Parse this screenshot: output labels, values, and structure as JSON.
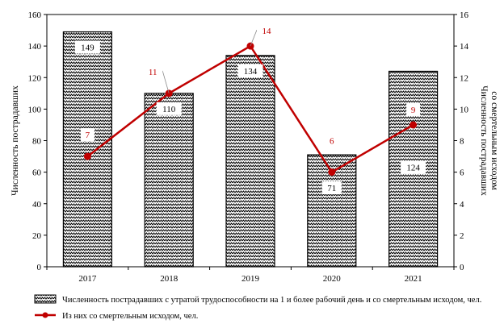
{
  "chart_data": {
    "type": "bar",
    "categories": [
      "2017",
      "2018",
      "2019",
      "2020",
      "2021"
    ],
    "series": [
      {
        "name": "Численность пострадавших с утратой трудоспособности на 1 и более рабочий день и со смертельным исходом, чел.",
        "type": "bar",
        "axis": "left",
        "values": [
          149,
          110,
          134,
          71,
          124
        ],
        "data_labels": [
          "149",
          "110",
          "134",
          "71",
          "124"
        ]
      },
      {
        "name": "Из них со смертельным исходом, чел.",
        "type": "line",
        "axis": "right",
        "values": [
          7,
          11,
          14,
          6,
          9
        ],
        "data_labels": [
          "7",
          "11",
          "14",
          "6",
          "9"
        ],
        "color": "#c00000"
      }
    ],
    "ylabel": "Численность пострадавших",
    "y2label": [
      "Численность пострадавших",
      "со смертельным исходом"
    ],
    "ylim": [
      0,
      160
    ],
    "y2lim": [
      0,
      16
    ],
    "yticks": [
      "0",
      "20",
      "40",
      "60",
      "80",
      "100",
      "120",
      "140",
      "160"
    ],
    "y2ticks": [
      "0",
      "2",
      "4",
      "6",
      "8",
      "10",
      "12",
      "14",
      "16"
    ],
    "grid": false,
    "legend_position": "bottom",
    "bar_fill": "zigzag-pattern",
    "colors": {
      "line": "#c00000",
      "bar_edge": "#000000"
    }
  }
}
